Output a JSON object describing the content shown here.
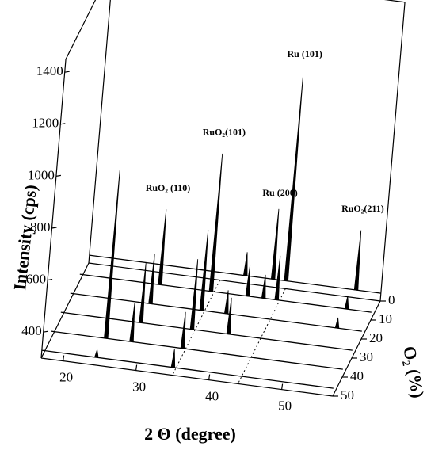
{
  "chart_data": {
    "type": "waterfall",
    "x_label": "2 Θ (degree)",
    "y_label": "Intensity (cps)",
    "z_label": "O₂ (%)",
    "xlim": [
      17,
      57
    ],
    "xticks": [
      20,
      30,
      40,
      50
    ],
    "ylim": [
      300,
      1450
    ],
    "yticks": [
      400,
      600,
      800,
      1000,
      1200,
      1400
    ],
    "zlim": [
      0,
      50
    ],
    "zticks": [
      0,
      10,
      20,
      30,
      40,
      50
    ],
    "color": "#000000",
    "ref_lines": [
      35.0,
      44.0
    ],
    "series": [
      {
        "z": 0,
        "baseline": 330,
        "x": [
          38.4,
          42.2,
          44.0,
          53.6
        ],
        "values": [
          420,
          600,
          1120,
          560
        ]
      },
      {
        "z": 10,
        "baseline": 330,
        "x": [
          28.0,
          35.0,
          40.0,
          42.2,
          44.0,
          53.6
        ],
        "values": [
          620,
          860,
          450,
          420,
          500,
          380
        ]
      },
      {
        "z": 20,
        "baseline": 330,
        "x": [
          28.0,
          35.0,
          38.4,
          53.6
        ],
        "values": [
          520,
          640,
          420,
          370
        ]
      },
      {
        "z": 30,
        "baseline": 330,
        "x": [
          28.0,
          35.0,
          40.0
        ],
        "values": [
          560,
          600,
          470
        ]
      },
      {
        "z": 40,
        "baseline": 330,
        "x": [
          24.5,
          28.0,
          35.0
        ],
        "values": [
          980,
          480,
          470
        ]
      },
      {
        "z": 50,
        "baseline": 330,
        "x": [
          24.5,
          35.0
        ],
        "values": [
          360,
          400
        ]
      }
    ],
    "annotations": [
      {
        "text": "RuO₂ (110)",
        "x": 28.0,
        "z": 10,
        "y": 700
      },
      {
        "text": "RuO₂(101)",
        "x": 35.0,
        "z": 10,
        "y": 940
      },
      {
        "text": "Ru (200)",
        "x": 42.2,
        "z": 0,
        "y": 660
      },
      {
        "text": "Ru (101)",
        "x": 44.0,
        "z": 0,
        "y": 1200
      },
      {
        "text": "RuO₂(211)",
        "x": 53.6,
        "z": 0,
        "y": 640
      }
    ]
  }
}
